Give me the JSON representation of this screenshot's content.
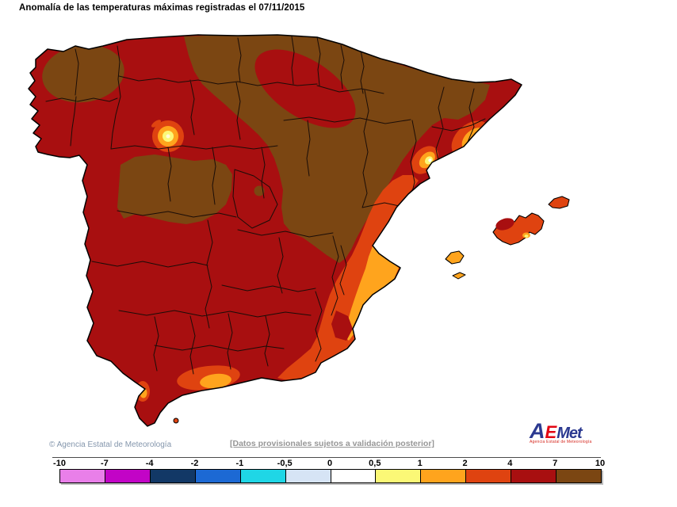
{
  "title": "Anomalía de las temperaturas máximas registradas el 07/11/2015",
  "footer": {
    "copyright": "© Agencia Estatal de Meteorología",
    "provisional_note": "[Datos provisionales sujetos a validación posterior]",
    "logo": {
      "part_a": "A",
      "part_e": "E",
      "part_met": "Met",
      "subtitle": "Agencia Estatal de Meteorología"
    }
  },
  "legend": {
    "tick_labels": [
      "-10",
      "-7",
      "-4",
      "-2",
      "-1",
      "-0,5",
      "0",
      "0,5",
      "1",
      "2",
      "4",
      "7",
      "10"
    ],
    "cell_colors": [
      "#E97FE9",
      "#C204C6",
      "#123866",
      "#1C69D4",
      "#1FD6E6",
      "#D6E4F5",
      "#FFFFFF",
      "#FBF876",
      "#FFA41D",
      "#DF4310",
      "#A80F10",
      "#7B4612"
    ]
  },
  "palette": {
    "dark_red": "#A80F10",
    "brown": "#7B4612",
    "orange_red": "#DF4310",
    "orange": "#FFA41D",
    "pale_yellow": "#FBF876",
    "white": "#FFFFFF",
    "cream": "#FFFBD8",
    "border_line": "#1A0D08",
    "coast_line": "#000000",
    "logo_blue": "#2B3990",
    "logo_red": "#E30613",
    "logo_sub_red": "#D5281F",
    "copyright_color": "#8496AC",
    "note_color": "#979797"
  },
  "chart_data": {
    "type": "choropleth-map",
    "title": "Anomalía de las temperaturas máximas registradas el 07/11/2015",
    "scale_values": [
      -10,
      -7,
      -4,
      -2,
      -1,
      -0.5,
      0,
      0.5,
      1,
      2,
      4,
      7,
      10
    ],
    "legend_position": "bottom"
  }
}
